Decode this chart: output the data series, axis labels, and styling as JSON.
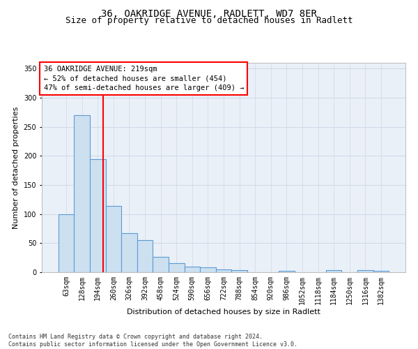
{
  "title_line1": "36, OAKRIDGE AVENUE, RADLETT, WD7 8ER",
  "title_line2": "Size of property relative to detached houses in Radlett",
  "xlabel": "Distribution of detached houses by size in Radlett",
  "ylabel": "Number of detached properties",
  "footnote": "Contains HM Land Registry data © Crown copyright and database right 2024.\nContains public sector information licensed under the Open Government Licence v3.0.",
  "bar_labels": [
    "63sqm",
    "128sqm",
    "194sqm",
    "260sqm",
    "326sqm",
    "392sqm",
    "458sqm",
    "524sqm",
    "590sqm",
    "656sqm",
    "722sqm",
    "788sqm",
    "854sqm",
    "920sqm",
    "986sqm",
    "1052sqm",
    "1118sqm",
    "1184sqm",
    "1250sqm",
    "1316sqm",
    "1382sqm"
  ],
  "bar_values": [
    100,
    270,
    195,
    114,
    67,
    55,
    27,
    16,
    10,
    8,
    5,
    4,
    0,
    0,
    3,
    0,
    0,
    4,
    0,
    4,
    3
  ],
  "bar_color": "#cce0f0",
  "bar_edgecolor": "#5b9bd5",
  "bar_linewidth": 0.8,
  "vline_x_index": 2.35,
  "vline_color": "red",
  "vline_linewidth": 1.5,
  "annotation_box_text": "36 OAKRIDGE AVENUE: 219sqm\n← 52% of detached houses are smaller (454)\n47% of semi-detached houses are larger (409) →",
  "ylim": [
    0,
    360
  ],
  "yticks": [
    0,
    50,
    100,
    150,
    200,
    250,
    300,
    350
  ],
  "grid_color": "#d0d8e8",
  "bg_color": "#eaf0f8",
  "title_fontsize": 10,
  "subtitle_fontsize": 9,
  "axis_label_fontsize": 8,
  "tick_fontsize": 7,
  "annotation_fontsize": 7.5,
  "footnote_fontsize": 6
}
